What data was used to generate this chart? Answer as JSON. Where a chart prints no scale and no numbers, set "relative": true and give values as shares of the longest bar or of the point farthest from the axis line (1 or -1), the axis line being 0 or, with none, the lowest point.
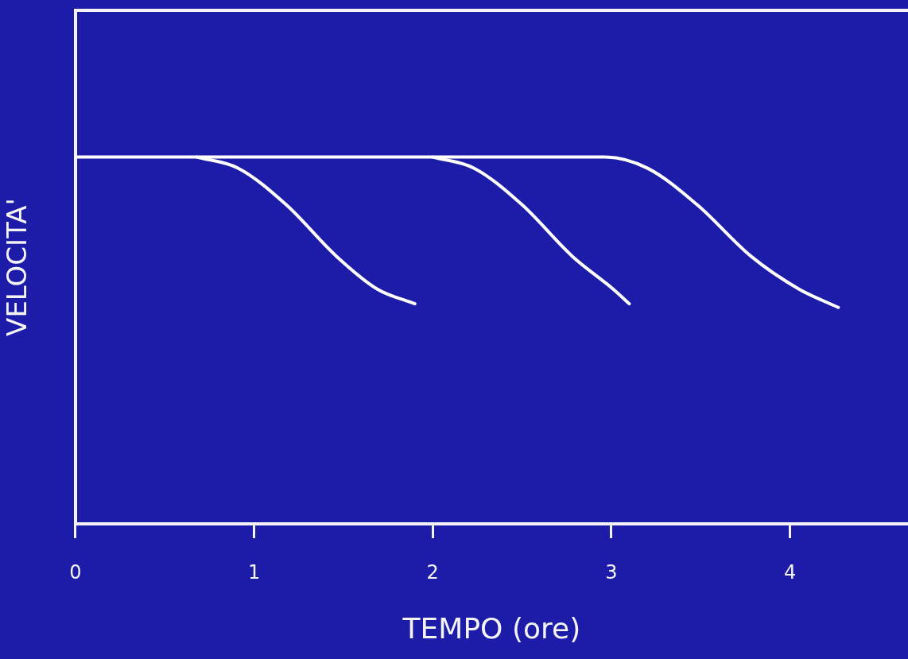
{
  "chart_data": {
    "type": "line",
    "xlabel": "TEMPO (ore)",
    "ylabel": "VELOCITA'",
    "relative": true,
    "xlim": [
      0,
      4.66
    ],
    "xticks": [
      0,
      1,
      2,
      3,
      4
    ],
    "grid": false,
    "legend": false,
    "marker": "none",
    "line_style": "solid",
    "series": [
      {
        "color": "#ffffff",
        "x": [
          0,
          1,
          2,
          2.96,
          3.2,
          3.48,
          3.78,
          4.05,
          4.27
        ],
        "values": [
          1,
          1,
          1,
          1,
          0.97,
          0.87,
          0.73,
          0.64,
          0.59
        ]
      },
      {
        "color": "#ffffff",
        "x": [
          0.68,
          0.91,
          1.18,
          1.46,
          1.69,
          1.9
        ],
        "values": [
          1,
          0.97,
          0.87,
          0.73,
          0.64,
          0.6
        ]
      },
      {
        "color": "#ffffff",
        "x": [
          2,
          2.23,
          2.5,
          2.78,
          3.01,
          3.1
        ],
        "values": [
          1,
          0.97,
          0.87,
          0.73,
          0.64,
          0.6
        ]
      }
    ]
  }
}
